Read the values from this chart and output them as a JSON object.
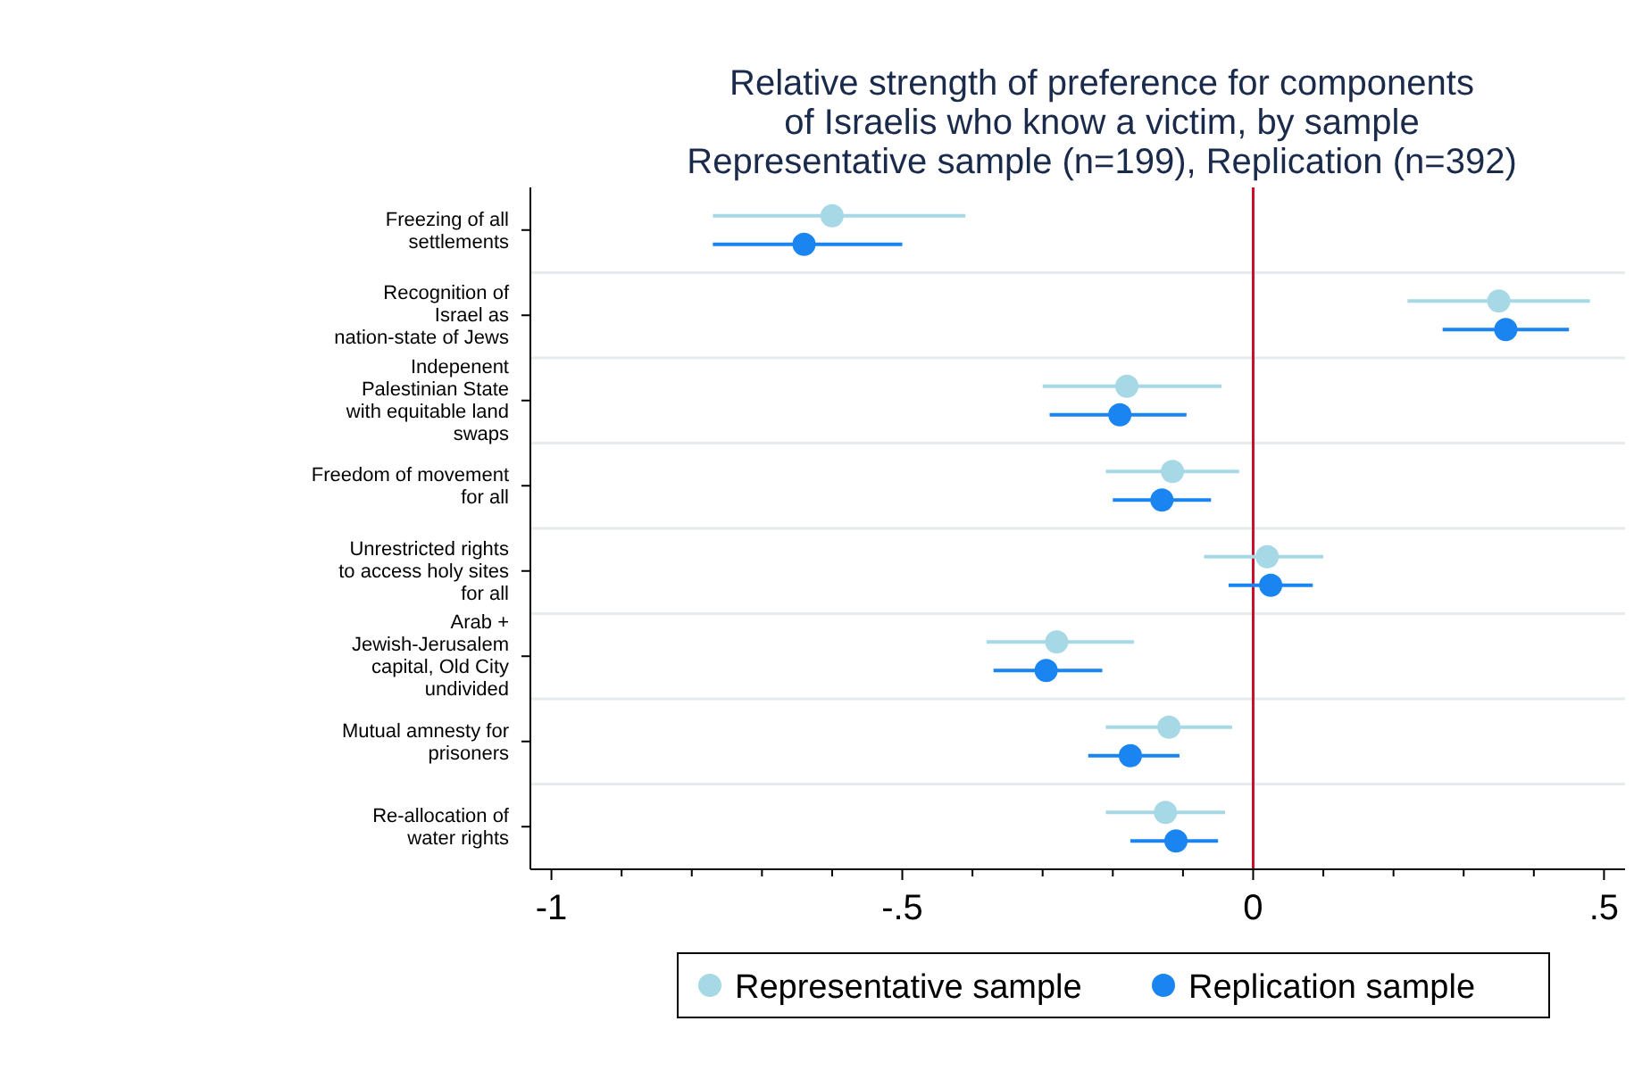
{
  "chart_data": {
    "type": "scatter",
    "orientation": "horizontal",
    "title": "Relative strength of preference for components of Israelis who know a victim, by sample",
    "subtitle": "Representative sample (n=199), Replication (n=392)",
    "categories": [
      "Freezing of all settlements",
      "Recognition of Israel as nation-state of Jews",
      "Indepenent Palestinian State with equitable land swaps",
      "Freedom of movement for all",
      "Unrestricted rights to access holy sites for all",
      "Arab + Jewish-Jerusalem capital, Old City undivided",
      "Mutual amnesty for prisoners",
      "Re-allocation of water rights"
    ],
    "series": [
      {
        "name": "Representative sample",
        "color": "#a6d8e6",
        "values": [
          -0.6,
          0.35,
          -0.18,
          -0.115,
          0.02,
          -0.28,
          -0.12,
          -0.125
        ],
        "errors": [
          [
            -0.77,
            -0.41
          ],
          [
            0.22,
            0.48
          ],
          [
            -0.3,
            -0.045
          ],
          [
            -0.21,
            -0.02
          ],
          [
            -0.07,
            0.1
          ],
          [
            -0.38,
            -0.17
          ],
          [
            -0.21,
            -0.03
          ],
          [
            -0.21,
            -0.04
          ]
        ]
      },
      {
        "name": "Replication sample",
        "color": "#1a85f0",
        "values": [
          -0.64,
          0.36,
          -0.19,
          -0.13,
          0.025,
          -0.295,
          -0.175,
          -0.11
        ],
        "errors": [
          [
            -0.77,
            -0.5
          ],
          [
            0.27,
            0.45
          ],
          [
            -0.29,
            -0.095
          ],
          [
            -0.2,
            -0.06
          ],
          [
            -0.035,
            0.085
          ],
          [
            -0.37,
            -0.215
          ],
          [
            -0.235,
            -0.105
          ],
          [
            -0.175,
            -0.05
          ]
        ]
      }
    ],
    "xlim": [
      -1.03,
      0.53
    ],
    "xticks": [
      -1,
      {
        "value": -0.9,
        "label": null
      },
      {
        "value": -0.8,
        "label": null
      },
      {
        "value": -0.7,
        "label": null
      },
      {
        "value": -0.6,
        "label": null
      },
      {
        "value": -0.5,
        "label": "-.5"
      },
      {
        "value": -0.4,
        "label": null
      },
      {
        "value": -0.3,
        "label": null
      },
      {
        "value": -0.2,
        "label": null
      },
      {
        "value": -0.1,
        "label": null
      },
      0,
      {
        "value": 0.1,
        "label": null
      },
      {
        "value": 0.2,
        "label": null
      },
      {
        "value": 0.3,
        "label": null
      },
      {
        "value": 0.4,
        "label": null
      },
      {
        "value": 0.5,
        "label": ".5"
      }
    ],
    "ref_lines": [
      {
        "axis": "x",
        "value": 0,
        "color": "#c8102e"
      }
    ],
    "grid": "y",
    "legend": "bottom",
    "marker": "circle"
  }
}
